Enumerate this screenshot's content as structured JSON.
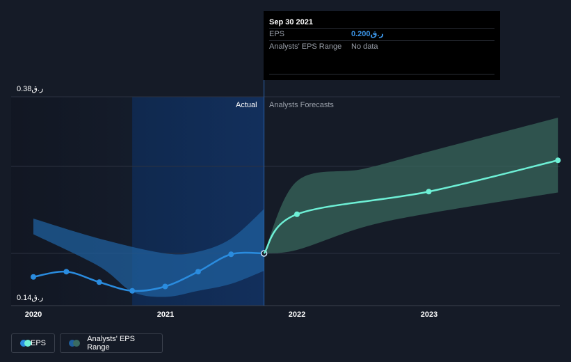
{
  "tooltip": {
    "date": "Sep 30 2021",
    "rows": [
      {
        "label": "EPS",
        "value": "0.200ر.ق"
      },
      {
        "label": "Analysts' EPS Range",
        "value": "No data"
      }
    ]
  },
  "zones": {
    "actual": "Actual",
    "forecast": "Analysts Forecasts"
  },
  "legend": {
    "eps": "EPS",
    "range": "Analysts' EPS Range"
  },
  "colors": {
    "eps_actual": "#2a8cdf",
    "eps_forecast": "#6ef0d6",
    "band_actual": "#1f5f9c",
    "band_forecast": "#3a6b60",
    "background": "#151b27"
  },
  "chart_data": {
    "type": "line",
    "y_axis": {
      "label_top": "0.38ر.ق",
      "label_bottom": "0.14ر.ق",
      "range": [
        0.14,
        0.38
      ]
    },
    "x_axis": {
      "ticks": [
        "2020",
        "2021",
        "2022",
        "2023"
      ],
      "range": [
        2019.9,
        2023.98
      ]
    },
    "series": [
      {
        "name": "EPS",
        "role": "actual",
        "points": [
          {
            "x": 2020.0,
            "y": 0.173
          },
          {
            "x": 2020.25,
            "y": 0.179
          },
          {
            "x": 2020.5,
            "y": 0.167
          },
          {
            "x": 2020.75,
            "y": 0.157
          },
          {
            "x": 2021.0,
            "y": 0.162
          },
          {
            "x": 2021.25,
            "y": 0.179
          },
          {
            "x": 2021.5,
            "y": 0.199
          },
          {
            "x": 2021.75,
            "y": 0.2
          }
        ]
      },
      {
        "name": "EPS",
        "role": "forecast",
        "points": [
          {
            "x": 2021.75,
            "y": 0.2
          },
          {
            "x": 2022.0,
            "y": 0.245
          },
          {
            "x": 2023.0,
            "y": 0.271
          },
          {
            "x": 2023.98,
            "y": 0.307
          }
        ]
      }
    ],
    "ranges": [
      {
        "name": "Analysts' EPS Range",
        "role": "actual",
        "upper": [
          {
            "x": 2020.0,
            "y": 0.24
          },
          {
            "x": 2020.5,
            "y": 0.217
          },
          {
            "x": 2021.0,
            "y": 0.2
          },
          {
            "x": 2021.25,
            "y": 0.202
          },
          {
            "x": 2021.5,
            "y": 0.217
          },
          {
            "x": 2021.75,
            "y": 0.251
          }
        ],
        "lower": [
          {
            "x": 2021.75,
            "y": 0.18
          },
          {
            "x": 2021.5,
            "y": 0.165
          },
          {
            "x": 2021.25,
            "y": 0.157
          },
          {
            "x": 2021.0,
            "y": 0.15
          },
          {
            "x": 2020.75,
            "y": 0.156
          },
          {
            "x": 2020.5,
            "y": 0.185
          },
          {
            "x": 2020.0,
            "y": 0.222
          }
        ]
      },
      {
        "name": "Analysts' EPS Range",
        "role": "forecast",
        "upper": [
          {
            "x": 2021.75,
            "y": 0.2
          },
          {
            "x": 2022.0,
            "y": 0.283
          },
          {
            "x": 2022.5,
            "y": 0.297
          },
          {
            "x": 2023.0,
            "y": 0.317
          },
          {
            "x": 2023.98,
            "y": 0.356
          }
        ],
        "lower": [
          {
            "x": 2023.98,
            "y": 0.27
          },
          {
            "x": 2023.0,
            "y": 0.246
          },
          {
            "x": 2022.5,
            "y": 0.23
          },
          {
            "x": 2022.0,
            "y": 0.204
          },
          {
            "x": 2021.75,
            "y": 0.2
          }
        ]
      }
    ],
    "actual_cutoff_x": 2021.75,
    "highlight_start_x": 2020.75,
    "grid": true,
    "legend_position": "bottom-left"
  }
}
